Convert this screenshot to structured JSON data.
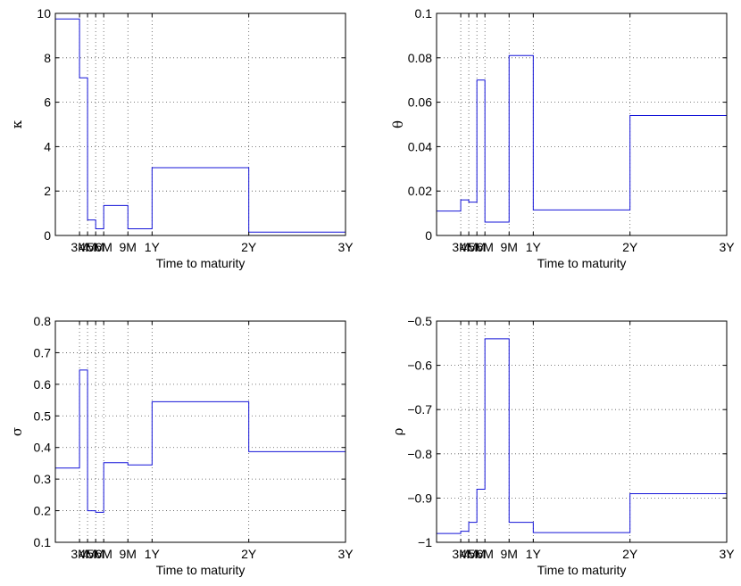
{
  "chart_data": [
    {
      "type": "line",
      "step": true,
      "ylabel": "κ",
      "xlabel": "Time to maturity",
      "xlim": [
        0,
        3
      ],
      "ylim": [
        0,
        10
      ],
      "yticks": [
        0,
        2,
        4,
        6,
        8,
        10
      ],
      "ytick_labels": [
        "0",
        "2",
        "4",
        "6",
        "8",
        "10"
      ],
      "xticks": [
        0.25,
        0.333,
        0.417,
        0.5,
        0.75,
        1,
        2,
        3
      ],
      "xtick_labels": [
        "3M",
        "4M",
        "5M",
        "6M",
        "9M",
        "1Y",
        "2Y",
        "3Y"
      ],
      "breaks": [
        0,
        0.25,
        0.333,
        0.417,
        0.5,
        0.75,
        1,
        2,
        3
      ],
      "values": [
        9.75,
        7.1,
        0.7,
        0.3,
        1.35,
        0.3,
        3.05,
        0.15
      ],
      "grid": true,
      "series_color": "#1414d8"
    },
    {
      "type": "line",
      "step": true,
      "ylabel": "θ",
      "xlabel": "Time to maturity",
      "xlim": [
        0,
        3
      ],
      "ylim": [
        0,
        0.1
      ],
      "yticks": [
        0,
        0.02,
        0.04,
        0.06,
        0.08,
        0.1
      ],
      "ytick_labels": [
        "0",
        "0.02",
        "0.04",
        "0.06",
        "0.08",
        "0.1"
      ],
      "xticks": [
        0.25,
        0.333,
        0.417,
        0.5,
        0.75,
        1,
        2,
        3
      ],
      "xtick_labels": [
        "3M",
        "4M",
        "5M",
        "6M",
        "9M",
        "1Y",
        "2Y",
        "3Y"
      ],
      "breaks": [
        0,
        0.25,
        0.333,
        0.417,
        0.5,
        0.75,
        1,
        2,
        3
      ],
      "values": [
        0.011,
        0.016,
        0.015,
        0.07,
        0.006,
        0.081,
        0.0115,
        0.054
      ],
      "grid": true,
      "series_color": "#1414d8"
    },
    {
      "type": "line",
      "step": true,
      "ylabel": "σ",
      "xlabel": "Time to maturity",
      "xlim": [
        0,
        3
      ],
      "ylim": [
        0.1,
        0.8
      ],
      "yticks": [
        0.1,
        0.2,
        0.3,
        0.4,
        0.5,
        0.6,
        0.7,
        0.8
      ],
      "ytick_labels": [
        "0.1",
        "0.2",
        "0.3",
        "0.4",
        "0.5",
        "0.6",
        "0.7",
        "0.8"
      ],
      "xticks": [
        0.25,
        0.333,
        0.417,
        0.5,
        0.75,
        1,
        2,
        3
      ],
      "xtick_labels": [
        "3M",
        "4M",
        "5M",
        "6M",
        "9M",
        "1Y",
        "2Y",
        "3Y"
      ],
      "breaks": [
        0,
        0.25,
        0.333,
        0.417,
        0.5,
        0.75,
        1,
        2,
        3
      ],
      "values": [
        0.335,
        0.645,
        0.2,
        0.195,
        0.352,
        0.345,
        0.545,
        0.387
      ],
      "grid": true,
      "series_color": "#1414d8"
    },
    {
      "type": "line",
      "step": true,
      "ylabel": "ρ",
      "xlabel": "Time to maturity",
      "xlim": [
        0,
        3
      ],
      "ylim": [
        -1,
        -0.5
      ],
      "yticks": [
        -1,
        -0.9,
        -0.8,
        -0.7,
        -0.6,
        -0.5
      ],
      "ytick_labels": [
        "−1",
        "−0.9",
        "−0.8",
        "−0.7",
        "−0.6",
        "−0.5"
      ],
      "xticks": [
        0.25,
        0.333,
        0.417,
        0.5,
        0.75,
        1,
        2,
        3
      ],
      "xtick_labels": [
        "3M",
        "4M",
        "5M",
        "6M",
        "9M",
        "1Y",
        "2Y",
        "3Y"
      ],
      "breaks": [
        0,
        0.25,
        0.333,
        0.417,
        0.5,
        0.75,
        1,
        2,
        3
      ],
      "values": [
        -0.98,
        -0.975,
        -0.955,
        -0.88,
        -0.54,
        -0.955,
        -0.978,
        -0.89
      ],
      "grid": true,
      "series_color": "#1414d8"
    }
  ]
}
